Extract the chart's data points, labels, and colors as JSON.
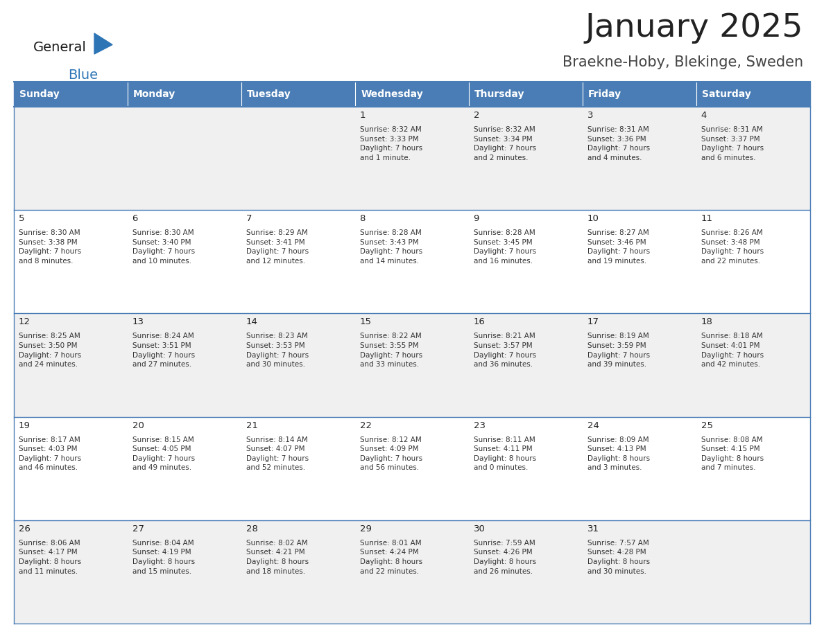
{
  "title": "January 2025",
  "subtitle": "Braekne-Hoby, Blekinge, Sweden",
  "days_of_week": [
    "Sunday",
    "Monday",
    "Tuesday",
    "Wednesday",
    "Thursday",
    "Friday",
    "Saturday"
  ],
  "header_bg": "#4a7db5",
  "header_text_color": "#ffffff",
  "cell_bg_light": "#f0f0f0",
  "cell_bg_white": "#ffffff",
  "cell_border_color": "#4a7db5",
  "day_number_color": "#222222",
  "cell_text_color": "#333333",
  "title_color": "#222222",
  "subtitle_color": "#444444",
  "logo_general_color": "#1a1a1a",
  "logo_blue_color": "#2E75B6",
  "logo_triangle_color": "#2E75B6",
  "weeks": [
    [
      {
        "day": "",
        "info": ""
      },
      {
        "day": "",
        "info": ""
      },
      {
        "day": "",
        "info": ""
      },
      {
        "day": "1",
        "info": "Sunrise: 8:32 AM\nSunset: 3:33 PM\nDaylight: 7 hours\nand 1 minute."
      },
      {
        "day": "2",
        "info": "Sunrise: 8:32 AM\nSunset: 3:34 PM\nDaylight: 7 hours\nand 2 minutes."
      },
      {
        "day": "3",
        "info": "Sunrise: 8:31 AM\nSunset: 3:36 PM\nDaylight: 7 hours\nand 4 minutes."
      },
      {
        "day": "4",
        "info": "Sunrise: 8:31 AM\nSunset: 3:37 PM\nDaylight: 7 hours\nand 6 minutes."
      }
    ],
    [
      {
        "day": "5",
        "info": "Sunrise: 8:30 AM\nSunset: 3:38 PM\nDaylight: 7 hours\nand 8 minutes."
      },
      {
        "day": "6",
        "info": "Sunrise: 8:30 AM\nSunset: 3:40 PM\nDaylight: 7 hours\nand 10 minutes."
      },
      {
        "day": "7",
        "info": "Sunrise: 8:29 AM\nSunset: 3:41 PM\nDaylight: 7 hours\nand 12 minutes."
      },
      {
        "day": "8",
        "info": "Sunrise: 8:28 AM\nSunset: 3:43 PM\nDaylight: 7 hours\nand 14 minutes."
      },
      {
        "day": "9",
        "info": "Sunrise: 8:28 AM\nSunset: 3:45 PM\nDaylight: 7 hours\nand 16 minutes."
      },
      {
        "day": "10",
        "info": "Sunrise: 8:27 AM\nSunset: 3:46 PM\nDaylight: 7 hours\nand 19 minutes."
      },
      {
        "day": "11",
        "info": "Sunrise: 8:26 AM\nSunset: 3:48 PM\nDaylight: 7 hours\nand 22 minutes."
      }
    ],
    [
      {
        "day": "12",
        "info": "Sunrise: 8:25 AM\nSunset: 3:50 PM\nDaylight: 7 hours\nand 24 minutes."
      },
      {
        "day": "13",
        "info": "Sunrise: 8:24 AM\nSunset: 3:51 PM\nDaylight: 7 hours\nand 27 minutes."
      },
      {
        "day": "14",
        "info": "Sunrise: 8:23 AM\nSunset: 3:53 PM\nDaylight: 7 hours\nand 30 minutes."
      },
      {
        "day": "15",
        "info": "Sunrise: 8:22 AM\nSunset: 3:55 PM\nDaylight: 7 hours\nand 33 minutes."
      },
      {
        "day": "16",
        "info": "Sunrise: 8:21 AM\nSunset: 3:57 PM\nDaylight: 7 hours\nand 36 minutes."
      },
      {
        "day": "17",
        "info": "Sunrise: 8:19 AM\nSunset: 3:59 PM\nDaylight: 7 hours\nand 39 minutes."
      },
      {
        "day": "18",
        "info": "Sunrise: 8:18 AM\nSunset: 4:01 PM\nDaylight: 7 hours\nand 42 minutes."
      }
    ],
    [
      {
        "day": "19",
        "info": "Sunrise: 8:17 AM\nSunset: 4:03 PM\nDaylight: 7 hours\nand 46 minutes."
      },
      {
        "day": "20",
        "info": "Sunrise: 8:15 AM\nSunset: 4:05 PM\nDaylight: 7 hours\nand 49 minutes."
      },
      {
        "day": "21",
        "info": "Sunrise: 8:14 AM\nSunset: 4:07 PM\nDaylight: 7 hours\nand 52 minutes."
      },
      {
        "day": "22",
        "info": "Sunrise: 8:12 AM\nSunset: 4:09 PM\nDaylight: 7 hours\nand 56 minutes."
      },
      {
        "day": "23",
        "info": "Sunrise: 8:11 AM\nSunset: 4:11 PM\nDaylight: 8 hours\nand 0 minutes."
      },
      {
        "day": "24",
        "info": "Sunrise: 8:09 AM\nSunset: 4:13 PM\nDaylight: 8 hours\nand 3 minutes."
      },
      {
        "day": "25",
        "info": "Sunrise: 8:08 AM\nSunset: 4:15 PM\nDaylight: 8 hours\nand 7 minutes."
      }
    ],
    [
      {
        "day": "26",
        "info": "Sunrise: 8:06 AM\nSunset: 4:17 PM\nDaylight: 8 hours\nand 11 minutes."
      },
      {
        "day": "27",
        "info": "Sunrise: 8:04 AM\nSunset: 4:19 PM\nDaylight: 8 hours\nand 15 minutes."
      },
      {
        "day": "28",
        "info": "Sunrise: 8:02 AM\nSunset: 4:21 PM\nDaylight: 8 hours\nand 18 minutes."
      },
      {
        "day": "29",
        "info": "Sunrise: 8:01 AM\nSunset: 4:24 PM\nDaylight: 8 hours\nand 22 minutes."
      },
      {
        "day": "30",
        "info": "Sunrise: 7:59 AM\nSunset: 4:26 PM\nDaylight: 8 hours\nand 26 minutes."
      },
      {
        "day": "31",
        "info": "Sunrise: 7:57 AM\nSunset: 4:28 PM\nDaylight: 8 hours\nand 30 minutes."
      },
      {
        "day": "",
        "info": ""
      }
    ]
  ]
}
